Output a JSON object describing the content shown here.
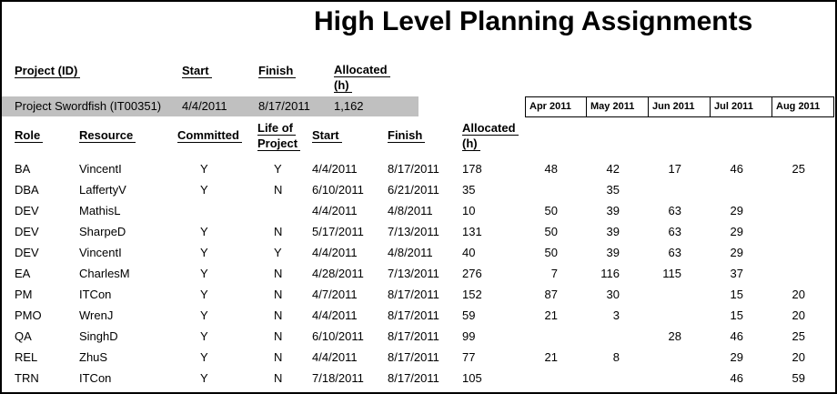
{
  "title": "High Level Planning Assignments",
  "colors": {
    "highlight_row": "#c0c0c0",
    "border": "#000000",
    "text": "#000000"
  },
  "project_header": {
    "project_id": "Project (ID)",
    "start": "Start",
    "finish": "Finish",
    "allocated_line1": "Allocated",
    "allocated_line2": "(h)"
  },
  "project_row": {
    "name": "Project Swordfish (IT00351)",
    "start": "4/4/2011",
    "finish": "8/17/2011",
    "allocated_h": "1,162"
  },
  "months": [
    "Apr 2011",
    "May 2011",
    "Jun 2011",
    "Jul 2011",
    "Aug 2011"
  ],
  "detail_header": {
    "role": "Role",
    "resource": "Resource",
    "committed": "Committed",
    "life_line1": "Life of",
    "life_line2": "Project",
    "start": "Start",
    "finish": "Finish",
    "allocated_line1": "Allocated",
    "allocated_line2": "(h)"
  },
  "rows": [
    {
      "role": "BA",
      "resource": "VincentI",
      "committed": "Y",
      "life": "Y",
      "start": "4/4/2011",
      "finish": "8/17/2011",
      "allocated": "178",
      "months": [
        "48",
        "42",
        "17",
        "46",
        "25"
      ]
    },
    {
      "role": "DBA",
      "resource": "LaffertyV",
      "committed": "Y",
      "life": "N",
      "start": "6/10/2011",
      "finish": "6/21/2011",
      "allocated": "35",
      "months": [
        "",
        "35",
        "",
        "",
        ""
      ]
    },
    {
      "role": "DEV",
      "resource": "MathisL",
      "committed": "",
      "life": "",
      "start": "4/4/2011",
      "finish": "4/8/2011",
      "allocated": "10",
      "months": [
        "50",
        "39",
        "63",
        "29",
        ""
      ]
    },
    {
      "role": "DEV",
      "resource": "SharpeD",
      "committed": "Y",
      "life": "N",
      "start": "5/17/2011",
      "finish": "7/13/2011",
      "allocated": "131",
      "months": [
        "50",
        "39",
        "63",
        "29",
        ""
      ]
    },
    {
      "role": "DEV",
      "resource": "VincentI",
      "committed": "Y",
      "life": "Y",
      "start": "4/4/2011",
      "finish": "4/8/2011",
      "allocated": "40",
      "months": [
        "50",
        "39",
        "63",
        "29",
        ""
      ]
    },
    {
      "role": "EA",
      "resource": "CharlesM",
      "committed": "Y",
      "life": "N",
      "start": "4/28/2011",
      "finish": "7/13/2011",
      "allocated": "276",
      "months": [
        "7",
        "116",
        "115",
        "37",
        ""
      ]
    },
    {
      "role": "PM",
      "resource": "ITCon",
      "committed": "Y",
      "life": "N",
      "start": "4/7/2011",
      "finish": "8/17/2011",
      "allocated": "152",
      "months": [
        "87",
        "30",
        "",
        "15",
        "20"
      ]
    },
    {
      "role": "PMO",
      "resource": "WrenJ",
      "committed": "Y",
      "life": "N",
      "start": "4/4/2011",
      "finish": "8/17/2011",
      "allocated": "59",
      "months": [
        "21",
        "3",
        "",
        "15",
        "20"
      ]
    },
    {
      "role": "QA",
      "resource": "SinghD",
      "committed": "Y",
      "life": "N",
      "start": "6/10/2011",
      "finish": "8/17/2011",
      "allocated": "99",
      "months": [
        "",
        "",
        "28",
        "46",
        "25"
      ]
    },
    {
      "role": "REL",
      "resource": "ZhuS",
      "committed": "Y",
      "life": "N",
      "start": "4/4/2011",
      "finish": "8/17/2011",
      "allocated": "77",
      "months": [
        "21",
        "8",
        "",
        "29",
        "20"
      ]
    },
    {
      "role": "TRN",
      "resource": "ITCon",
      "committed": "Y",
      "life": "N",
      "start": "7/18/2011",
      "finish": "8/17/2011",
      "allocated": "105",
      "months": [
        "",
        "",
        "",
        "46",
        "59"
      ]
    }
  ]
}
